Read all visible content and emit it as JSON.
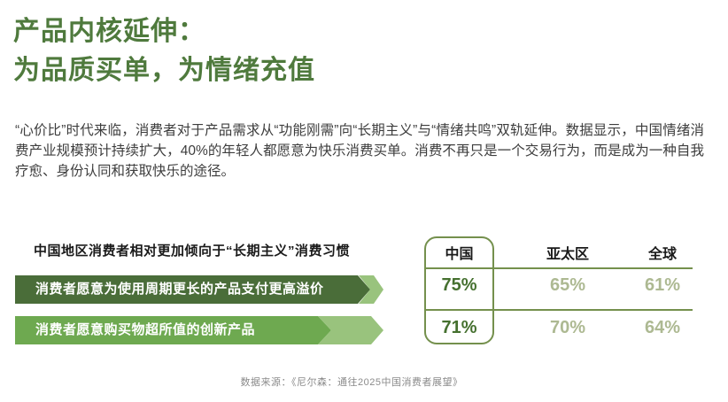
{
  "title": {
    "line1": "产品内核延伸：",
    "line2": "为品质买单，为情绪充值"
  },
  "intro": "“心价比”时代来临，消费者对于产品需求从“功能刚需”向“长期主义”与“情绪共鸣”双轨延伸。数据显示，中国情绪消费产业规模预计持续扩大，40%的年轻人都愿意为快乐消费买单。消费不再只是一个交易行为，而是成为一种自我疗愈、身份认同和获取快乐的途径。",
  "chart_data": {
    "type": "table",
    "title": "中国地区消费者相对更加倾向于“长期主义”消费习惯",
    "categories": [
      "中国",
      "亚太区",
      "全球"
    ],
    "rows": [
      {
        "label": "消费者愿意为使用周期更长的产品支付更高溢价",
        "values": [
          "75%",
          "65%",
          "61%"
        ],
        "values_numeric": [
          75,
          65,
          61
        ]
      },
      {
        "label": "消费者愿意购买物超所值的创新产品",
        "values": [
          "71%",
          "70%",
          "64%"
        ],
        "values_numeric": [
          71,
          70,
          64
        ]
      }
    ],
    "highlight_column": "中国",
    "legend_position": "none",
    "grid": "horizontal-separators"
  },
  "source": "数据来源：《尼尔森：通往2025中国消费者展望》",
  "colors": {
    "title_green": "#4f7a3d",
    "bar_dark": "#4a6d39",
    "bar_medium": "#6ea950",
    "bar_light": "#99c37d",
    "value_dark": "#45702f",
    "value_light": "#adb992",
    "line_green": "#74904d"
  }
}
